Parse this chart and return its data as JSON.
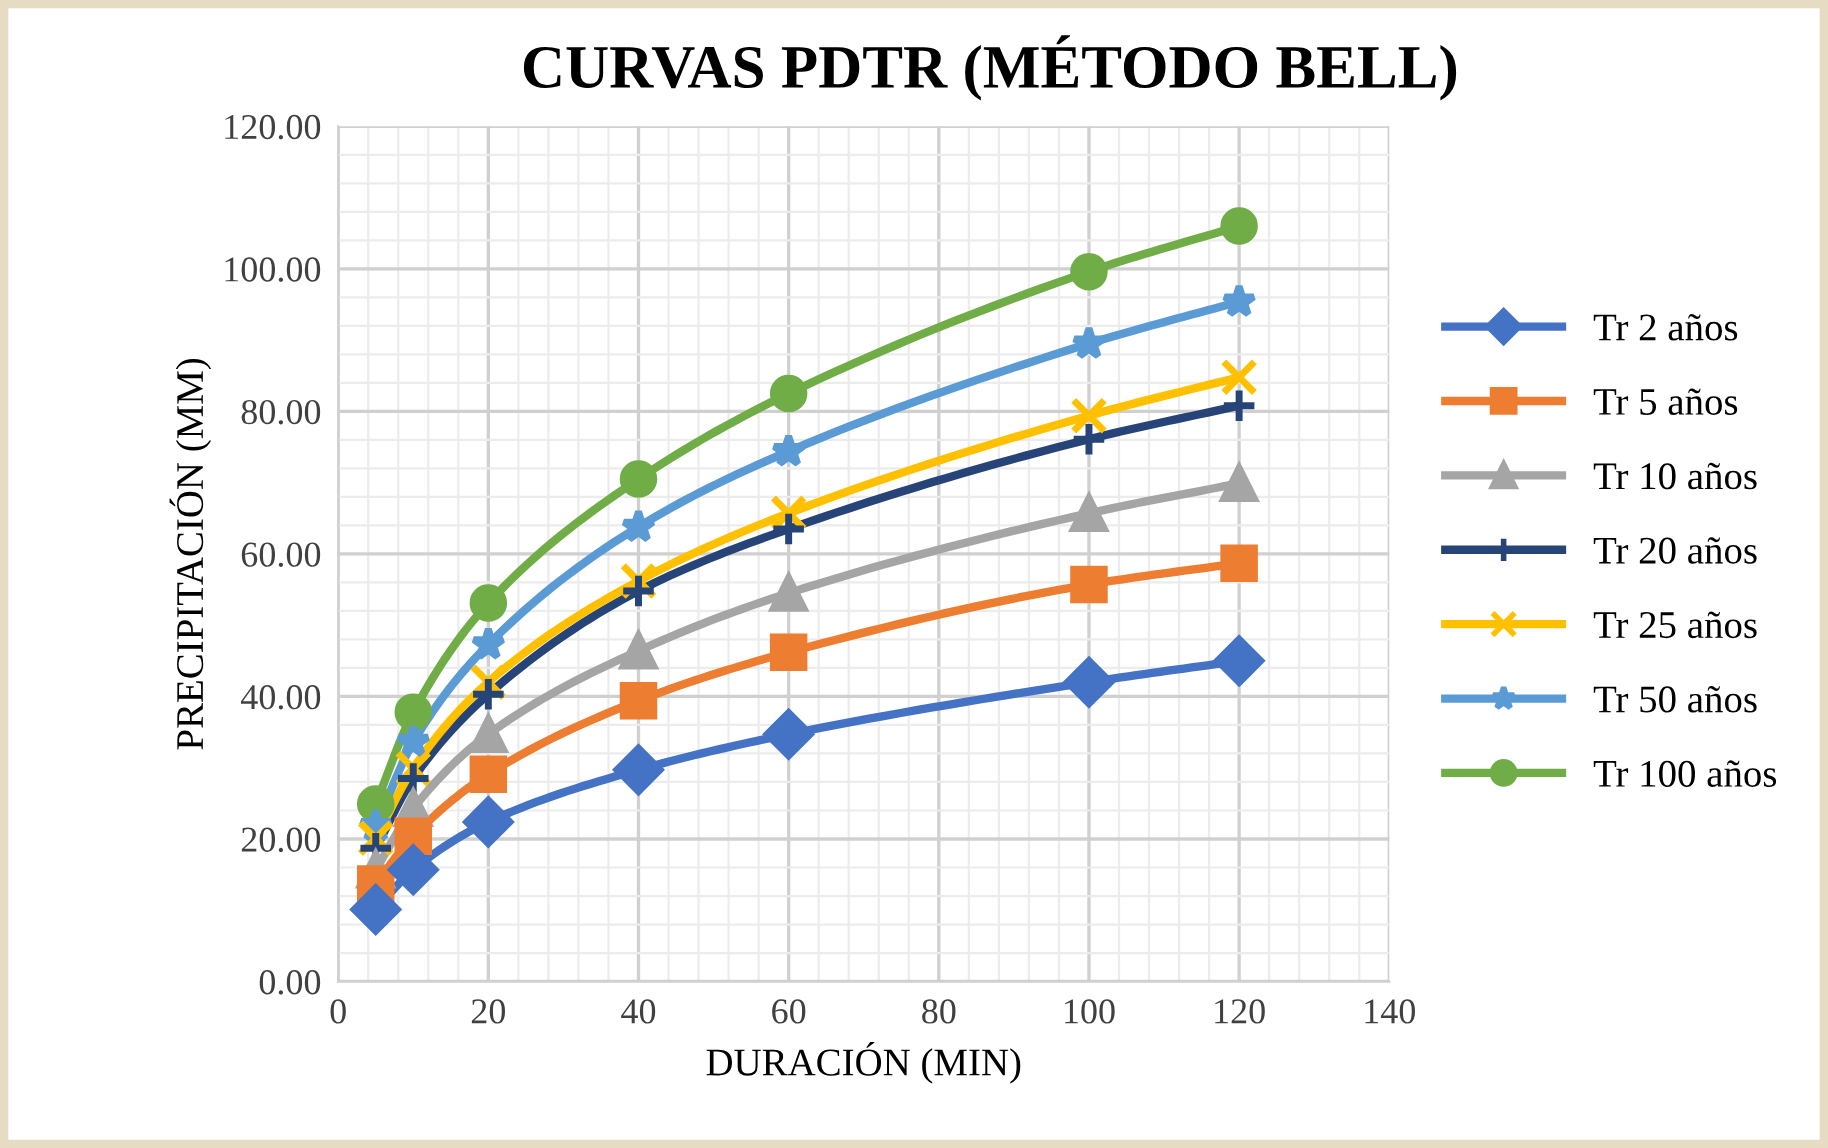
{
  "chart_data": {
    "type": "line",
    "title": "CURVAS PDTR (MÉTODO BELL)",
    "xlabel": "DURACIÓN (MIN)",
    "ylabel": "PRECIPITACIÓN (MM)",
    "x": [
      5,
      10,
      20,
      40,
      60,
      100,
      120
    ],
    "xlim": [
      0,
      140
    ],
    "xticks": [
      0,
      20,
      40,
      60,
      80,
      100,
      120,
      140
    ],
    "ylim": [
      0,
      120
    ],
    "yticks": [
      {
        "value": 0,
        "label": "0.00"
      },
      {
        "value": 20,
        "label": "20.00"
      },
      {
        "value": 40,
        "label": "40.00"
      },
      {
        "value": 60,
        "label": "60.00"
      },
      {
        "value": 80,
        "label": "80.00"
      },
      {
        "value": 100,
        "label": "100.00"
      },
      {
        "value": 120,
        "label": "120.00"
      }
    ],
    "grid": true,
    "legend": "right",
    "line_style": "solid",
    "series": [
      {
        "name": "Tr 2 años",
        "color": "#4472c4",
        "marker": "diamond",
        "values": [
          10.1,
          15.7,
          22.4,
          29.7,
          34.7,
          42.0,
          45.0
        ]
      },
      {
        "name": "Tr 5 años",
        "color": "#ed7d31",
        "marker": "square",
        "values": [
          13.7,
          20.4,
          29.1,
          39.4,
          46.2,
          55.7,
          58.7
        ]
      },
      {
        "name": "Tr 10 años",
        "color": "#a5a5a5",
        "marker": "triangle",
        "values": [
          15.7,
          24.3,
          34.7,
          46.4,
          54.5,
          65.7,
          69.9
        ]
      },
      {
        "name": "Tr 20 años",
        "color": "#264478",
        "marker": "plus",
        "values": [
          18.7,
          28.5,
          40.3,
          54.8,
          63.5,
          76.1,
          80.8
        ]
      },
      {
        "name": "Tr 25 años",
        "color": "#ffc000",
        "marker": "cross",
        "values": [
          20.1,
          29.9,
          42.0,
          56.2,
          65.7,
          79.4,
          84.8
        ]
      },
      {
        "name": "Tr 50 años",
        "color": "#5b9bd5",
        "marker": "star",
        "values": [
          21.8,
          33.6,
          47.3,
          63.8,
          74.4,
          89.5,
          95.4
        ]
      },
      {
        "name": "Tr 100 años",
        "color": "#70ad47",
        "marker": "circle",
        "values": [
          24.9,
          37.8,
          53.1,
          70.5,
          82.5,
          99.6,
          106.0
        ]
      }
    ]
  }
}
